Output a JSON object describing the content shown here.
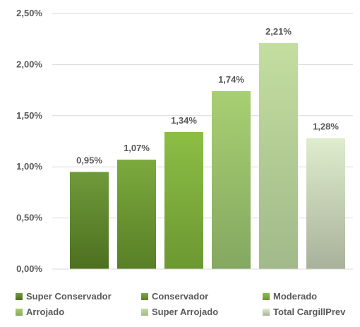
{
  "chart_data": {
    "type": "bar",
    "categories": [
      "Super Conservador",
      "Conservador",
      "Moderado",
      "Arrojado",
      "Super Arrojado",
      "Total CargillPrev"
    ],
    "values": [
      0.95,
      1.07,
      1.34,
      1.74,
      2.21,
      1.28
    ],
    "data_labels": [
      "0,95%",
      "1,07%",
      "1,34%",
      "1,74%",
      "2,21%",
      "1,28%"
    ],
    "ylim": [
      0,
      2.5
    ],
    "yticks": [
      0,
      0.5,
      1.0,
      1.5,
      2.0,
      2.5
    ],
    "ytick_labels": [
      "0,00%",
      "0,50%",
      "1,00%",
      "1,50%",
      "2,00%",
      "2,50%"
    ],
    "title": "",
    "xlabel": "",
    "ylabel": "",
    "grid": true,
    "legend_position": "bottom",
    "colors": {
      "Super Conservador": [
        "#6f9a3a",
        "#4d7020"
      ],
      "Conservador": [
        "#7caa3e",
        "#587f26"
      ],
      "Moderado": [
        "#8cbe45",
        "#6c9832"
      ],
      "Arrojado": [
        "#a8cf72",
        "#84a860"
      ],
      "Super Arrojado": [
        "#c3de9f",
        "#a2b98a"
      ],
      "Total CargillPrev": [
        "#dfeccd",
        "#a8b29a"
      ]
    }
  }
}
